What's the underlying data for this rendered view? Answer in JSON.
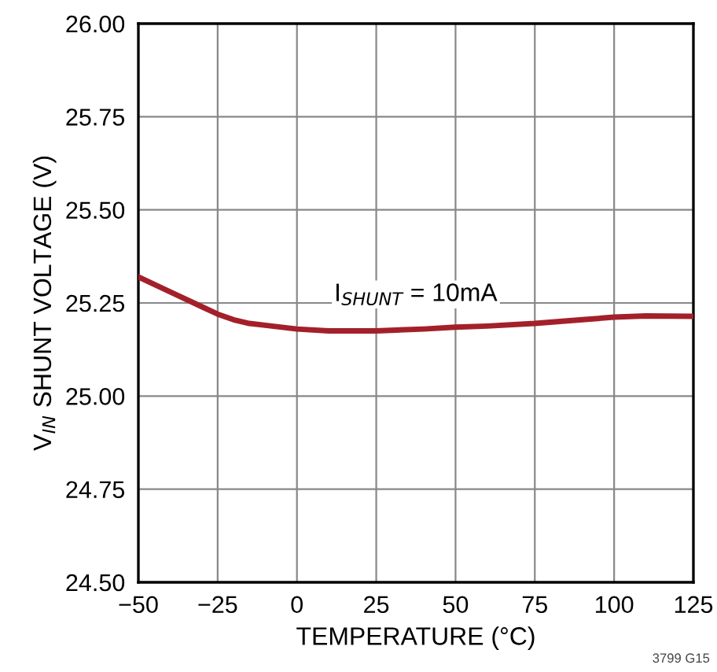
{
  "chart_data": {
    "type": "line",
    "xlabel": "TEMPERATURE (°C)",
    "ylabel": "V$_{IN}$ SHUNT VOLTAGE (V)",
    "x": [
      -50,
      -40,
      -30,
      -25,
      -20,
      -15,
      -10,
      0,
      10,
      25,
      40,
      50,
      60,
      75,
      90,
      100,
      110,
      125
    ],
    "series": [
      {
        "color": "#a3202a",
        "values": [
          25.32,
          25.28,
          25.24,
          25.22,
          25.205,
          25.195,
          25.19,
          25.18,
          25.175,
          25.175,
          25.18,
          25.185,
          25.188,
          25.195,
          25.205,
          25.212,
          25.215,
          25.214
        ]
      }
    ],
    "xlim": [
      -50,
      125
    ],
    "xticks": [
      {
        "value": -50,
        "label": "−50"
      },
      {
        "value": -25,
        "label": "−25"
      },
      0,
      25,
      50,
      75,
      100,
      125
    ],
    "ylim": [
      24.5,
      26
    ],
    "yticks": [
      {
        "value": 24.5,
        "label": "24.50"
      },
      {
        "value": 24.75,
        "label": "24.75"
      },
      {
        "value": 25,
        "label": "25.00"
      },
      {
        "value": 25.25,
        "label": "25.25"
      },
      {
        "value": 25.5,
        "label": "25.50"
      },
      {
        "value": 25.75,
        "label": "25.75"
      },
      {
        "value": 26,
        "label": "26.00"
      }
    ],
    "grid": true,
    "marker": "none",
    "line_style": "solid",
    "annotations": [
      "I$_{SHUNT}$ = 10mA",
      "3799 G15"
    ]
  }
}
